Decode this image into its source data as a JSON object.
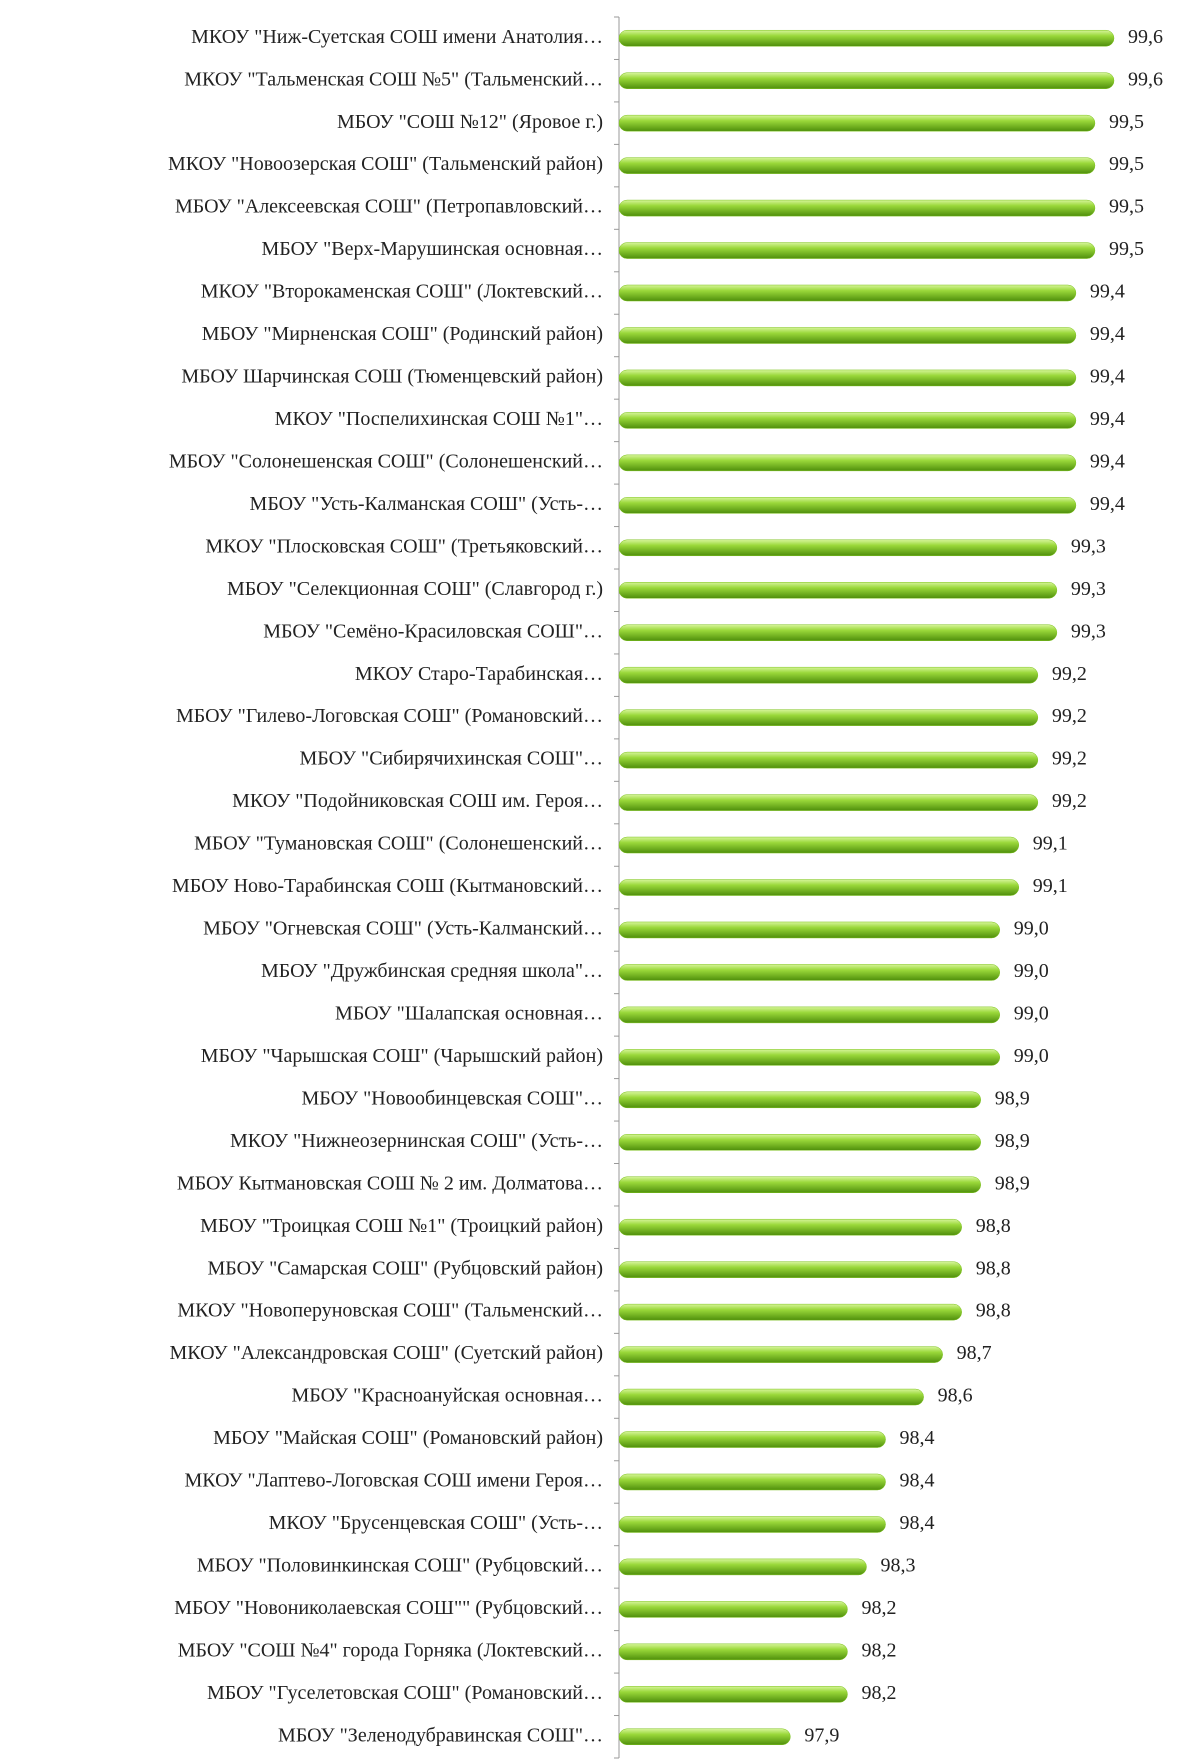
{
  "chart_data": {
    "type": "barh",
    "categories": [
      "МКОУ \"Ниж-Суетская СОШ имени Анатолия…",
      "МКОУ \"Тальменская СОШ №5\" (Тальменский…",
      "МБОУ \"СОШ №12\" (Яровое г.)",
      "МКОУ \"Новоозерская СОШ\" (Тальменский район)",
      "МБОУ \"Алексеевская СОШ\" (Петропавловский…",
      "МБОУ \"Верх-Марушинская основная…",
      "МКОУ \"Второкаменская СОШ\" (Локтевский…",
      "МБОУ \"Мирненская СОШ\" (Родинский район)",
      "МБОУ Шарчинская СОШ (Тюменцевский район)",
      "МКОУ \"Поспелихинская СОШ №1\"…",
      "МБОУ \"Солонешенская СОШ\" (Солонешенский…",
      "МБОУ \"Усть-Калманская СОШ\" (Усть-…",
      "МКОУ \"Плосковская СОШ\" (Третьяковский…",
      "МБОУ \"Селекционная СОШ\" (Славгород г.)",
      "МБОУ \"Семёно-Красиловская СОШ\"…",
      "МКОУ Старо-Тарабинская…",
      "МБОУ \"Гилево-Логовская СОШ\" (Романовский…",
      "МБОУ \"Сибирячихинская СОШ\"…",
      "МКОУ \"Подойниковская СОШ им. Героя…",
      "МБОУ \"Тумановская СОШ\" (Солонешенский…",
      "МБОУ Ново-Тарабинская СОШ (Кытмановский…",
      "МБОУ \"Огневская СОШ\" (Усть-Калманский…",
      "МБОУ \"Дружбинская средняя школа\"…",
      "МБОУ \"Шалапская основная…",
      "МБОУ \"Чарышская СОШ\" (Чарышский район)",
      "МБОУ \"Новообинцевская СОШ\"…",
      "МКОУ \"Нижнеозернинская СОШ\" (Усть-…",
      "МБОУ Кытмановская СОШ № 2 им. Долматова…",
      "МБОУ \"Троицкая СОШ №1\" (Троицкий район)",
      "МБОУ \"Самарская СОШ\" (Рубцовский район)",
      "МКОУ \"Новоперуновская СОШ\" (Тальменский…",
      "МКОУ \"Александровская СОШ\" (Суетский район)",
      "МБОУ \"Красноануйская основная…",
      "МБОУ \"Майская СОШ\" (Романовский район)",
      "МКОУ \"Лаптево-Логовская СОШ имени Героя…",
      "МКОУ \"Брусенцевская СОШ\" (Усть-…",
      "МБОУ \"Половинкинская СОШ\" (Рубцовский…",
      "МБОУ \"Новониколаевская СОШ\"\" (Рубцовский…",
      "МБОУ \"СОШ №4\" города Горняка (Локтевский…",
      "МБОУ \"Гуселетовская СОШ\" (Романовский…",
      "МБОУ \"Зеленодубравинская СОШ\"…"
    ],
    "values": [
      99.6,
      99.6,
      99.5,
      99.5,
      99.5,
      99.5,
      99.4,
      99.4,
      99.4,
      99.4,
      99.4,
      99.4,
      99.3,
      99.3,
      99.3,
      99.2,
      99.2,
      99.2,
      99.2,
      99.1,
      99.1,
      99.0,
      99.0,
      99.0,
      99.0,
      98.9,
      98.9,
      98.9,
      98.8,
      98.8,
      98.8,
      98.7,
      98.6,
      98.4,
      98.4,
      98.4,
      98.3,
      98.2,
      98.2,
      98.2,
      97.9
    ],
    "value_labels": [
      "99,6",
      "99,6",
      "99,5",
      "99,5",
      "99,5",
      "99,5",
      "99,4",
      "99,4",
      "99,4",
      "99,4",
      "99,4",
      "99,4",
      "99,3",
      "99,3",
      "99,3",
      "99,2",
      "99,2",
      "99,2",
      "99,2",
      "99,1",
      "99,1",
      "99,0",
      "99,0",
      "99,0",
      "99,0",
      "98,9",
      "98,9",
      "98,9",
      "98,8",
      "98,8",
      "98,8",
      "98,7",
      "98,6",
      "98,4",
      "98,4",
      "98,4",
      "98,3",
      "98,2",
      "98,2",
      "98,2",
      "97,9"
    ],
    "color": "#7dc21e",
    "xlim": [
      97,
      99.6
    ]
  }
}
